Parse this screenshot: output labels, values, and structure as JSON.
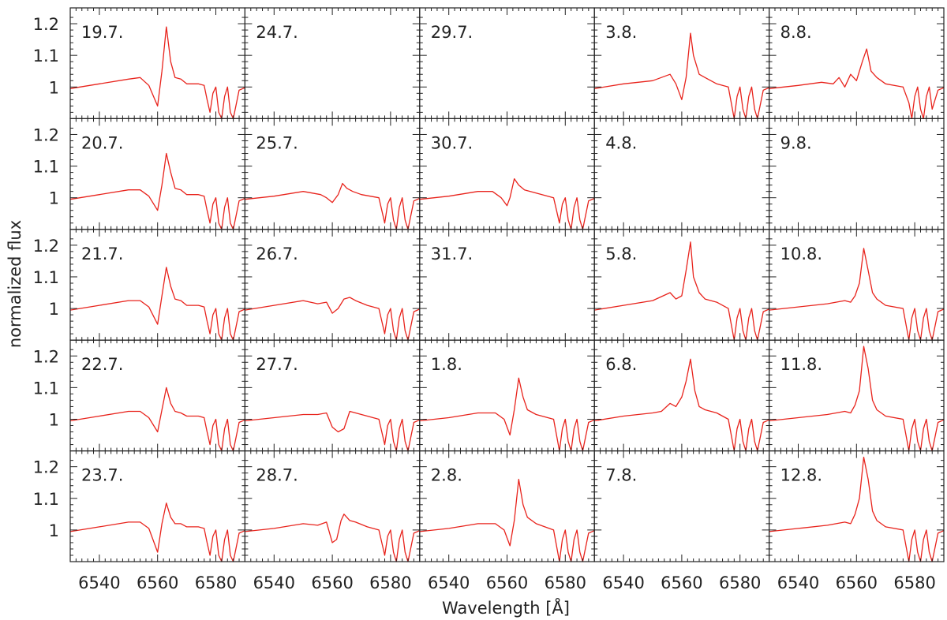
{
  "chart_data": {
    "type": "line",
    "layout": "5x5 small multiples, shared axes",
    "xlabel": "Wavelength [Å]",
    "ylabel": "normalized flux",
    "xlim": [
      6530,
      6590
    ],
    "ylim": [
      0.9,
      1.25
    ],
    "xticks": [
      6540,
      6560,
      6580
    ],
    "xtick_labels": [
      "6540",
      "6560",
      "6580"
    ],
    "yticks": [
      1.0,
      1.1,
      1.2
    ],
    "ytick_labels": [
      "1",
      "1.1",
      "1.2"
    ],
    "line_color": "#e8231c",
    "grid": false,
    "panels": [
      {
        "label": "19.7.",
        "empty": false,
        "x": [
          6530,
          6540,
          6550,
          6554,
          6557,
          6560,
          6561.5,
          6563,
          6564.5,
          6566,
          6568,
          6570,
          6574,
          6576,
          6577,
          6578,
          6579,
          6580,
          6581,
          6582,
          6583,
          6584,
          6585,
          6586,
          6588,
          6590
        ],
        "y": [
          0.995,
          1.01,
          1.025,
          1.03,
          1.005,
          0.94,
          1.05,
          1.19,
          1.08,
          1.03,
          1.025,
          1.01,
          1.01,
          1.005,
          0.96,
          0.92,
          0.98,
          1.0,
          0.92,
          0.88,
          0.97,
          1.0,
          0.92,
          0.88,
          0.99,
          0.998
        ]
      },
      {
        "label": "24.7.",
        "empty": true,
        "x": [],
        "y": []
      },
      {
        "label": "29.7.",
        "empty": true,
        "x": [],
        "y": []
      },
      {
        "label": "3.8.",
        "empty": false,
        "x": [
          6530,
          6540,
          6550,
          6556,
          6558,
          6560,
          6561.5,
          6563,
          6564,
          6566,
          6568,
          6572,
          6576,
          6577,
          6578,
          6579,
          6580,
          6581,
          6582,
          6583,
          6584,
          6585,
          6586,
          6588,
          6590
        ],
        "y": [
          0.995,
          1.01,
          1.02,
          1.04,
          1.01,
          0.96,
          1.03,
          1.17,
          1.1,
          1.04,
          1.03,
          1.01,
          1.0,
          0.95,
          0.9,
          0.97,
          1.0,
          0.93,
          0.9,
          0.97,
          1.0,
          0.93,
          0.9,
          0.99,
          0.998
        ]
      },
      {
        "label": "8.8.",
        "empty": false,
        "x": [
          6530,
          6540,
          6548,
          6552,
          6554,
          6556,
          6558,
          6560,
          6562,
          6563.5,
          6565,
          6567,
          6570,
          6576,
          6578,
          6579,
          6580,
          6581,
          6582,
          6583,
          6584,
          6585,
          6586,
          6588,
          6590
        ],
        "y": [
          0.995,
          1.005,
          1.015,
          1.01,
          1.03,
          1.0,
          1.04,
          1.02,
          1.08,
          1.12,
          1.05,
          1.03,
          1.01,
          1.0,
          0.95,
          0.9,
          0.97,
          1.0,
          0.93,
          0.9,
          0.97,
          1.0,
          0.93,
          0.99,
          0.998
        ]
      },
      {
        "label": "20.7.",
        "empty": false,
        "x": [
          6530,
          6540,
          6550,
          6554,
          6557,
          6560,
          6561.5,
          6563,
          6564.5,
          6566,
          6568,
          6570,
          6574,
          6576,
          6577,
          6578,
          6579,
          6580,
          6581,
          6582,
          6583,
          6584,
          6585,
          6586,
          6588,
          6590
        ],
        "y": [
          0.995,
          1.01,
          1.025,
          1.025,
          1.005,
          0.96,
          1.04,
          1.14,
          1.08,
          1.03,
          1.025,
          1.01,
          1.01,
          1.005,
          0.96,
          0.92,
          0.98,
          1.0,
          0.92,
          0.88,
          0.97,
          1.0,
          0.92,
          0.88,
          0.99,
          0.998
        ]
      },
      {
        "label": "25.7.",
        "empty": false,
        "x": [
          6530,
          6540,
          6550,
          6556,
          6558,
          6560,
          6562,
          6563.5,
          6565,
          6567,
          6570,
          6576,
          6577,
          6578,
          6579,
          6580,
          6581,
          6582,
          6583,
          6584,
          6585,
          6586,
          6588,
          6590
        ],
        "y": [
          0.995,
          1.005,
          1.02,
          1.01,
          1.0,
          0.985,
          1.01,
          1.045,
          1.03,
          1.02,
          1.01,
          1.0,
          0.96,
          0.92,
          0.98,
          1.0,
          0.93,
          0.9,
          0.97,
          1.0,
          0.93,
          0.9,
          0.99,
          0.998
        ]
      },
      {
        "label": "30.7.",
        "empty": false,
        "x": [
          6530,
          6540,
          6550,
          6555,
          6558,
          6560,
          6561,
          6562.5,
          6564,
          6566,
          6568,
          6572,
          6576,
          6577,
          6578,
          6579,
          6580,
          6581,
          6582,
          6583,
          6584,
          6585,
          6586,
          6588,
          6590
        ],
        "y": [
          0.995,
          1.005,
          1.02,
          1.02,
          1.0,
          0.975,
          1.0,
          1.06,
          1.04,
          1.025,
          1.02,
          1.01,
          1.0,
          0.96,
          0.92,
          0.98,
          1.0,
          0.93,
          0.9,
          0.97,
          1.0,
          0.93,
          0.9,
          0.99,
          0.998
        ]
      },
      {
        "label": "4.8.",
        "empty": true,
        "x": [],
        "y": []
      },
      {
        "label": "9.8.",
        "empty": true,
        "x": [],
        "y": []
      },
      {
        "label": "21.7.",
        "empty": false,
        "x": [
          6530,
          6540,
          6550,
          6554,
          6557,
          6560,
          6561.5,
          6563,
          6564.5,
          6566,
          6568,
          6570,
          6574,
          6576,
          6577,
          6578,
          6579,
          6580,
          6581,
          6582,
          6583,
          6584,
          6585,
          6586,
          6588,
          6590
        ],
        "y": [
          0.995,
          1.01,
          1.025,
          1.025,
          1.005,
          0.95,
          1.04,
          1.13,
          1.07,
          1.03,
          1.025,
          1.01,
          1.01,
          1.005,
          0.96,
          0.92,
          0.98,
          1.0,
          0.92,
          0.88,
          0.97,
          1.0,
          0.92,
          0.88,
          0.99,
          0.998
        ]
      },
      {
        "label": "26.7.",
        "empty": false,
        "x": [
          6530,
          6540,
          6550,
          6555,
          6558,
          6560,
          6562,
          6564,
          6566,
          6568,
          6572,
          6576,
          6577,
          6578,
          6579,
          6580,
          6581,
          6582,
          6583,
          6584,
          6585,
          6586,
          6588,
          6590
        ],
        "y": [
          0.995,
          1.01,
          1.025,
          1.015,
          1.02,
          0.985,
          1.0,
          1.03,
          1.035,
          1.025,
          1.01,
          1.0,
          0.96,
          0.92,
          0.98,
          1.0,
          0.93,
          0.9,
          0.97,
          1.0,
          0.93,
          0.9,
          0.99,
          0.998
        ]
      },
      {
        "label": "31.7.",
        "empty": true,
        "x": [],
        "y": []
      },
      {
        "label": "5.8.",
        "empty": false,
        "x": [
          6530,
          6540,
          6550,
          6556,
          6558,
          6560,
          6561.5,
          6563,
          6564,
          6566,
          6568,
          6572,
          6576,
          6577,
          6578,
          6579,
          6580,
          6581,
          6582,
          6583,
          6584,
          6585,
          6586,
          6588,
          6590
        ],
        "y": [
          0.995,
          1.01,
          1.025,
          1.05,
          1.03,
          1.04,
          1.12,
          1.21,
          1.1,
          1.05,
          1.03,
          1.02,
          1.0,
          0.95,
          0.9,
          0.97,
          1.0,
          0.93,
          0.9,
          0.97,
          1.0,
          0.93,
          0.9,
          0.99,
          0.998
        ]
      },
      {
        "label": "10.8.",
        "empty": false,
        "x": [
          6530,
          6540,
          6550,
          6556,
          6558,
          6559.5,
          6561,
          6562.5,
          6564,
          6565.5,
          6567,
          6570,
          6576,
          6577,
          6578,
          6579,
          6580,
          6581,
          6582,
          6583,
          6584,
          6585,
          6586,
          6588,
          6590
        ],
        "y": [
          0.995,
          1.005,
          1.015,
          1.025,
          1.02,
          1.04,
          1.08,
          1.19,
          1.12,
          1.05,
          1.03,
          1.01,
          1.0,
          0.95,
          0.9,
          0.97,
          1.0,
          0.93,
          0.9,
          0.97,
          1.0,
          0.93,
          0.9,
          0.99,
          0.998
        ]
      },
      {
        "label": "22.7.",
        "empty": false,
        "x": [
          6530,
          6540,
          6550,
          6554,
          6557,
          6560,
          6561.5,
          6563,
          6564.5,
          6566,
          6568,
          6570,
          6574,
          6576,
          6577,
          6578,
          6579,
          6580,
          6581,
          6582,
          6583,
          6584,
          6585,
          6586,
          6588,
          6590
        ],
        "y": [
          0.995,
          1.01,
          1.025,
          1.025,
          1.005,
          0.96,
          1.03,
          1.1,
          1.05,
          1.025,
          1.02,
          1.01,
          1.01,
          1.005,
          0.96,
          0.92,
          0.98,
          1.0,
          0.92,
          0.88,
          0.97,
          1.0,
          0.92,
          0.88,
          0.99,
          0.998
        ]
      },
      {
        "label": "27.7.",
        "empty": false,
        "x": [
          6530,
          6540,
          6550,
          6555,
          6558,
          6560,
          6562,
          6564,
          6566,
          6568,
          6572,
          6576,
          6577,
          6578,
          6579,
          6580,
          6581,
          6582,
          6583,
          6584,
          6585,
          6586,
          6588,
          6590
        ],
        "y": [
          0.995,
          1.005,
          1.015,
          1.015,
          1.02,
          0.975,
          0.96,
          0.97,
          1.025,
          1.02,
          1.01,
          1.0,
          0.96,
          0.92,
          0.98,
          1.0,
          0.93,
          0.9,
          0.97,
          1.0,
          0.93,
          0.9,
          0.99,
          0.998
        ]
      },
      {
        "label": "1.8.",
        "empty": false,
        "x": [
          6530,
          6540,
          6550,
          6556,
          6559,
          6561,
          6562.5,
          6564,
          6565.5,
          6567,
          6570,
          6576,
          6577,
          6578,
          6579,
          6580,
          6581,
          6582,
          6583,
          6584,
          6585,
          6586,
          6588,
          6590
        ],
        "y": [
          0.995,
          1.005,
          1.02,
          1.02,
          1.0,
          0.95,
          1.03,
          1.13,
          1.07,
          1.03,
          1.015,
          1.0,
          0.95,
          0.9,
          0.97,
          1.0,
          0.93,
          0.9,
          0.97,
          1.0,
          0.93,
          0.9,
          0.99,
          0.998
        ]
      },
      {
        "label": "6.8.",
        "empty": false,
        "x": [
          6530,
          6540,
          6550,
          6553,
          6556,
          6558,
          6560,
          6561.5,
          6563,
          6564.5,
          6566,
          6568,
          6572,
          6576,
          6577,
          6578,
          6579,
          6580,
          6581,
          6582,
          6583,
          6584,
          6585,
          6586,
          6588,
          6590
        ],
        "y": [
          0.995,
          1.01,
          1.02,
          1.025,
          1.05,
          1.04,
          1.07,
          1.12,
          1.19,
          1.09,
          1.04,
          1.03,
          1.02,
          1.0,
          0.95,
          0.9,
          0.97,
          1.0,
          0.93,
          0.9,
          0.97,
          1.0,
          0.93,
          0.9,
          0.99,
          0.998
        ]
      },
      {
        "label": "11.8.",
        "empty": false,
        "x": [
          6530,
          6540,
          6550,
          6556,
          6558,
          6559.5,
          6561,
          6562.5,
          6564,
          6565.5,
          6567,
          6570,
          6576,
          6577,
          6578,
          6579,
          6580,
          6581,
          6582,
          6583,
          6584,
          6585,
          6586,
          6588,
          6590
        ],
        "y": [
          0.995,
          1.005,
          1.015,
          1.025,
          1.02,
          1.045,
          1.09,
          1.23,
          1.16,
          1.06,
          1.03,
          1.01,
          1.0,
          0.95,
          0.9,
          0.97,
          1.0,
          0.93,
          0.9,
          0.97,
          1.0,
          0.93,
          0.9,
          0.99,
          0.998
        ]
      },
      {
        "label": "23.7.",
        "empty": false,
        "x": [
          6530,
          6540,
          6550,
          6554,
          6557,
          6560,
          6561.5,
          6563,
          6564.5,
          6566,
          6568,
          6570,
          6574,
          6576,
          6577,
          6578,
          6579,
          6580,
          6581,
          6582,
          6583,
          6584,
          6585,
          6586,
          6588,
          6590
        ],
        "y": [
          0.995,
          1.01,
          1.025,
          1.025,
          1.005,
          0.93,
          1.02,
          1.085,
          1.04,
          1.02,
          1.02,
          1.01,
          1.01,
          1.005,
          0.96,
          0.92,
          0.98,
          1.0,
          0.92,
          0.88,
          0.97,
          1.0,
          0.92,
          0.88,
          0.99,
          0.998
        ]
      },
      {
        "label": "28.7.",
        "empty": false,
        "x": [
          6530,
          6540,
          6550,
          6555,
          6558,
          6560,
          6561.5,
          6563,
          6564,
          6566,
          6568,
          6572,
          6576,
          6577,
          6578,
          6579,
          6580,
          6581,
          6582,
          6583,
          6584,
          6585,
          6586,
          6588,
          6590
        ],
        "y": [
          0.995,
          1.005,
          1.02,
          1.015,
          1.025,
          0.96,
          0.97,
          1.03,
          1.05,
          1.03,
          1.025,
          1.01,
          1.0,
          0.96,
          0.92,
          0.98,
          1.0,
          0.93,
          0.9,
          0.97,
          1.0,
          0.93,
          0.9,
          0.99,
          0.998
        ]
      },
      {
        "label": "2.8.",
        "empty": false,
        "x": [
          6530,
          6540,
          6550,
          6556,
          6559,
          6561,
          6562.5,
          6564,
          6565.5,
          6567,
          6570,
          6576,
          6577,
          6578,
          6579,
          6580,
          6581,
          6582,
          6583,
          6584,
          6585,
          6586,
          6588,
          6590
        ],
        "y": [
          0.995,
          1.005,
          1.02,
          1.02,
          1.0,
          0.95,
          1.03,
          1.16,
          1.08,
          1.04,
          1.02,
          1.0,
          0.95,
          0.9,
          0.97,
          1.0,
          0.93,
          0.9,
          0.97,
          1.0,
          0.93,
          0.9,
          0.99,
          0.998
        ]
      },
      {
        "label": "7.8.",
        "empty": true,
        "x": [],
        "y": []
      },
      {
        "label": "12.8.",
        "empty": false,
        "x": [
          6530,
          6540,
          6550,
          6556,
          6558,
          6559.5,
          6561,
          6562.5,
          6564,
          6565.5,
          6567,
          6570,
          6576,
          6577,
          6578,
          6579,
          6580,
          6581,
          6582,
          6583,
          6584,
          6585,
          6586,
          6588,
          6590
        ],
        "y": [
          0.995,
          1.005,
          1.015,
          1.025,
          1.02,
          1.05,
          1.1,
          1.23,
          1.16,
          1.06,
          1.03,
          1.01,
          1.0,
          0.95,
          0.9,
          0.97,
          1.0,
          0.93,
          0.9,
          0.97,
          1.0,
          0.93,
          0.9,
          0.99,
          0.998
        ]
      }
    ]
  }
}
